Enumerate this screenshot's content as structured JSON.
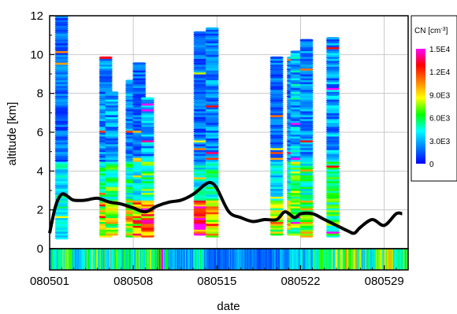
{
  "chart_data": {
    "type": "scatter",
    "xlabel": "date",
    "ylabel": "altitude [km]",
    "xlim": [
      "2008-05-01",
      "2008-05-31"
    ],
    "ylim": [
      0,
      12
    ],
    "yticks": [
      0,
      2,
      4,
      6,
      8,
      10,
      12
    ],
    "xticks": [
      {
        "date": "2008-05-01",
        "label": "080501"
      },
      {
        "date": "2008-05-08",
        "label": "080508"
      },
      {
        "date": "2008-05-15",
        "label": "080515"
      },
      {
        "date": "2008-05-22",
        "label": "080522"
      },
      {
        "date": "2008-05-29",
        "label": "080529"
      }
    ],
    "grid": true,
    "colorbar": {
      "title": "CN [cm",
      "title_sup": "-3",
      "title_end": "]",
      "ticks": [
        "0",
        "3.0E3",
        "6.0E3",
        "9.0E3",
        "1.2E4",
        "1.5E4"
      ],
      "range": [
        0,
        15000
      ],
      "colors": [
        "#0000ff",
        "#0080ff",
        "#00ffff",
        "#00ff00",
        "#ffff00",
        "#ff8000",
        "#ff0000",
        "#ff00ff"
      ]
    },
    "profiles": [
      {
        "date": "2008-05-02.0",
        "bottom": 0.5,
        "top": 11.9,
        "low_cn": 5000,
        "mid_cn": 2000
      },
      {
        "date": "2008-05-05.7",
        "bottom": 0.6,
        "top": 9.8,
        "low_cn": 9000,
        "mid_cn": 2500
      },
      {
        "date": "2008-05-06.2",
        "bottom": 0.7,
        "top": 8.0,
        "low_cn": 9000,
        "mid_cn": 3000
      },
      {
        "date": "2008-05-07.9",
        "bottom": 0.6,
        "top": 8.6,
        "low_cn": 10000,
        "mid_cn": 2500
      },
      {
        "date": "2008-05-08.5",
        "bottom": 0.6,
        "top": 9.5,
        "low_cn": 12000,
        "mid_cn": 2000
      },
      {
        "date": "2008-05-09.2",
        "bottom": 0.6,
        "top": 7.7,
        "low_cn": 13000,
        "mid_cn": 3000
      },
      {
        "date": "2008-05-13.6",
        "bottom": 0.7,
        "top": 11.1,
        "low_cn": 14000,
        "mid_cn": 2000
      },
      {
        "date": "2008-05-14.6",
        "bottom": 0.6,
        "top": 11.3,
        "low_cn": 12000,
        "mid_cn": 2500
      },
      {
        "date": "2008-05-20.0",
        "bottom": 0.7,
        "top": 9.8,
        "low_cn": 9000,
        "mid_cn": 2000
      },
      {
        "date": "2008-05-21.4",
        "bottom": 0.7,
        "top": 9.8,
        "low_cn": 9000,
        "mid_cn": 2500
      },
      {
        "date": "2008-05-21.7",
        "bottom": 0.7,
        "top": 10.1,
        "low_cn": 8000,
        "mid_cn": 3500
      },
      {
        "date": "2008-05-22.5",
        "bottom": 0.6,
        "top": 10.7,
        "low_cn": 9000,
        "mid_cn": 2500
      },
      {
        "date": "2008-05-24.7",
        "bottom": 0.6,
        "top": 10.8,
        "low_cn": 7000,
        "mid_cn": 3000
      }
    ],
    "line": {
      "x": [
        "2008-05-01.0",
        "2008-05-01.5",
        "2008-05-02.0",
        "2008-05-02.5",
        "2008-05-03.0",
        "2008-05-04.0",
        "2008-05-05.0",
        "2008-05-06.0",
        "2008-05-07.0",
        "2008-05-08.0",
        "2008-05-09.0",
        "2008-05-10.0",
        "2008-05-11.0",
        "2008-05-12.0",
        "2008-05-13.0",
        "2008-05-14.0",
        "2008-05-14.5",
        "2008-05-15.0",
        "2008-05-16.0",
        "2008-05-17.0",
        "2008-05-18.0",
        "2008-05-19.0",
        "2008-05-20.0",
        "2008-05-20.7",
        "2008-05-21.5",
        "2008-05-22.0",
        "2008-05-23.0",
        "2008-05-24.0",
        "2008-05-25.0",
        "2008-05-26.0",
        "2008-05-26.5",
        "2008-05-27.0",
        "2008-05-28.0",
        "2008-05-29.0",
        "2008-05-30.0",
        "2008-05-30.5"
      ],
      "y": [
        0.8,
        2.2,
        2.8,
        2.7,
        2.5,
        2.5,
        2.6,
        2.4,
        2.3,
        2.1,
        1.9,
        2.2,
        2.4,
        2.5,
        2.8,
        3.3,
        3.4,
        3.1,
        1.9,
        1.6,
        1.4,
        1.5,
        1.5,
        1.9,
        1.6,
        1.8,
        1.8,
        1.5,
        1.2,
        0.9,
        0.8,
        1.1,
        1.5,
        1.2,
        1.8,
        1.8
      ]
    },
    "bottom_strip": {
      "segments": [
        {
          "date": "2008-05-01.0",
          "cn": 4000
        },
        {
          "date": "2008-05-02.0",
          "cn": 5500
        },
        {
          "date": "2008-05-03.0",
          "cn": 3500
        },
        {
          "date": "2008-05-04.0",
          "cn": 6000
        },
        {
          "date": "2008-05-05.0",
          "cn": 5000
        },
        {
          "date": "2008-05-06.0",
          "cn": 7000
        },
        {
          "date": "2008-05-07.0",
          "cn": 4500
        },
        {
          "date": "2008-05-08.0",
          "cn": 5500
        },
        {
          "date": "2008-05-09.0",
          "cn": 6500
        },
        {
          "date": "2008-05-10.0",
          "cn": 11000
        },
        {
          "date": "2008-05-10.5",
          "cn": 5000
        },
        {
          "date": "2008-05-11.0",
          "cn": 2500
        },
        {
          "date": "2008-05-12.0",
          "cn": 3000
        },
        {
          "date": "2008-05-13.0",
          "cn": 4000
        },
        {
          "date": "2008-05-14.0",
          "cn": 2000
        },
        {
          "date": "2008-05-15.0",
          "cn": 1500
        },
        {
          "date": "2008-05-16.0",
          "cn": 2500
        },
        {
          "date": "2008-05-17.0",
          "cn": 2000
        },
        {
          "date": "2008-05-18.0",
          "cn": 1500
        },
        {
          "date": "2008-05-19.0",
          "cn": 2000
        },
        {
          "date": "2008-05-20.0",
          "cn": 2500
        },
        {
          "date": "2008-05-21.0",
          "cn": 3500
        },
        {
          "date": "2008-05-22.0",
          "cn": 4000
        },
        {
          "date": "2008-05-23.0",
          "cn": 5000
        },
        {
          "date": "2008-05-24.0",
          "cn": 6000
        },
        {
          "date": "2008-05-25.0",
          "cn": 7500
        },
        {
          "date": "2008-05-26.0",
          "cn": 8000
        },
        {
          "date": "2008-05-27.0",
          "cn": 5500
        },
        {
          "date": "2008-05-28.0",
          "cn": 6500
        },
        {
          "date": "2008-05-29.0",
          "cn": 7000
        },
        {
          "date": "2008-05-30.0",
          "cn": 6000
        }
      ]
    }
  }
}
